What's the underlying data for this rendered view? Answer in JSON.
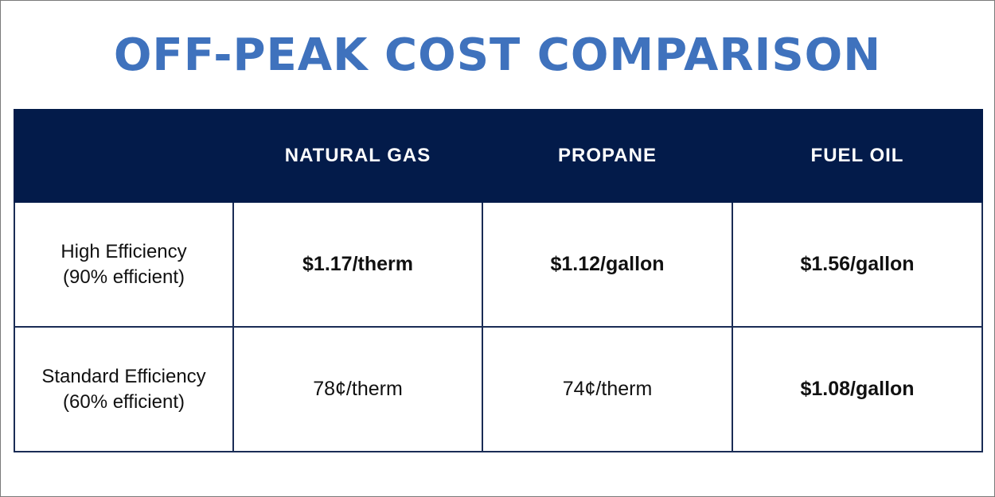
{
  "title": "OFF-PEAK COST COMPARISON",
  "table": {
    "columns": [
      "",
      "NATURAL GAS",
      "PROPANE",
      "FUEL OIL"
    ],
    "rows": [
      {
        "label_line1": "High Efficiency",
        "label_line2": "(90% efficient)",
        "values": [
          "$1.17/therm",
          "$1.12/gallon",
          "$1.56/gallon"
        ]
      },
      {
        "label_line1": "Standard Efficiency",
        "label_line2": "(60% efficient)",
        "values": [
          "78¢/therm",
          "74¢/therm",
          "$1.08/gallon"
        ]
      }
    ]
  },
  "colors": {
    "title": "#3f72bd",
    "header_bg": "#031b4a",
    "border": "#1a2c55"
  }
}
